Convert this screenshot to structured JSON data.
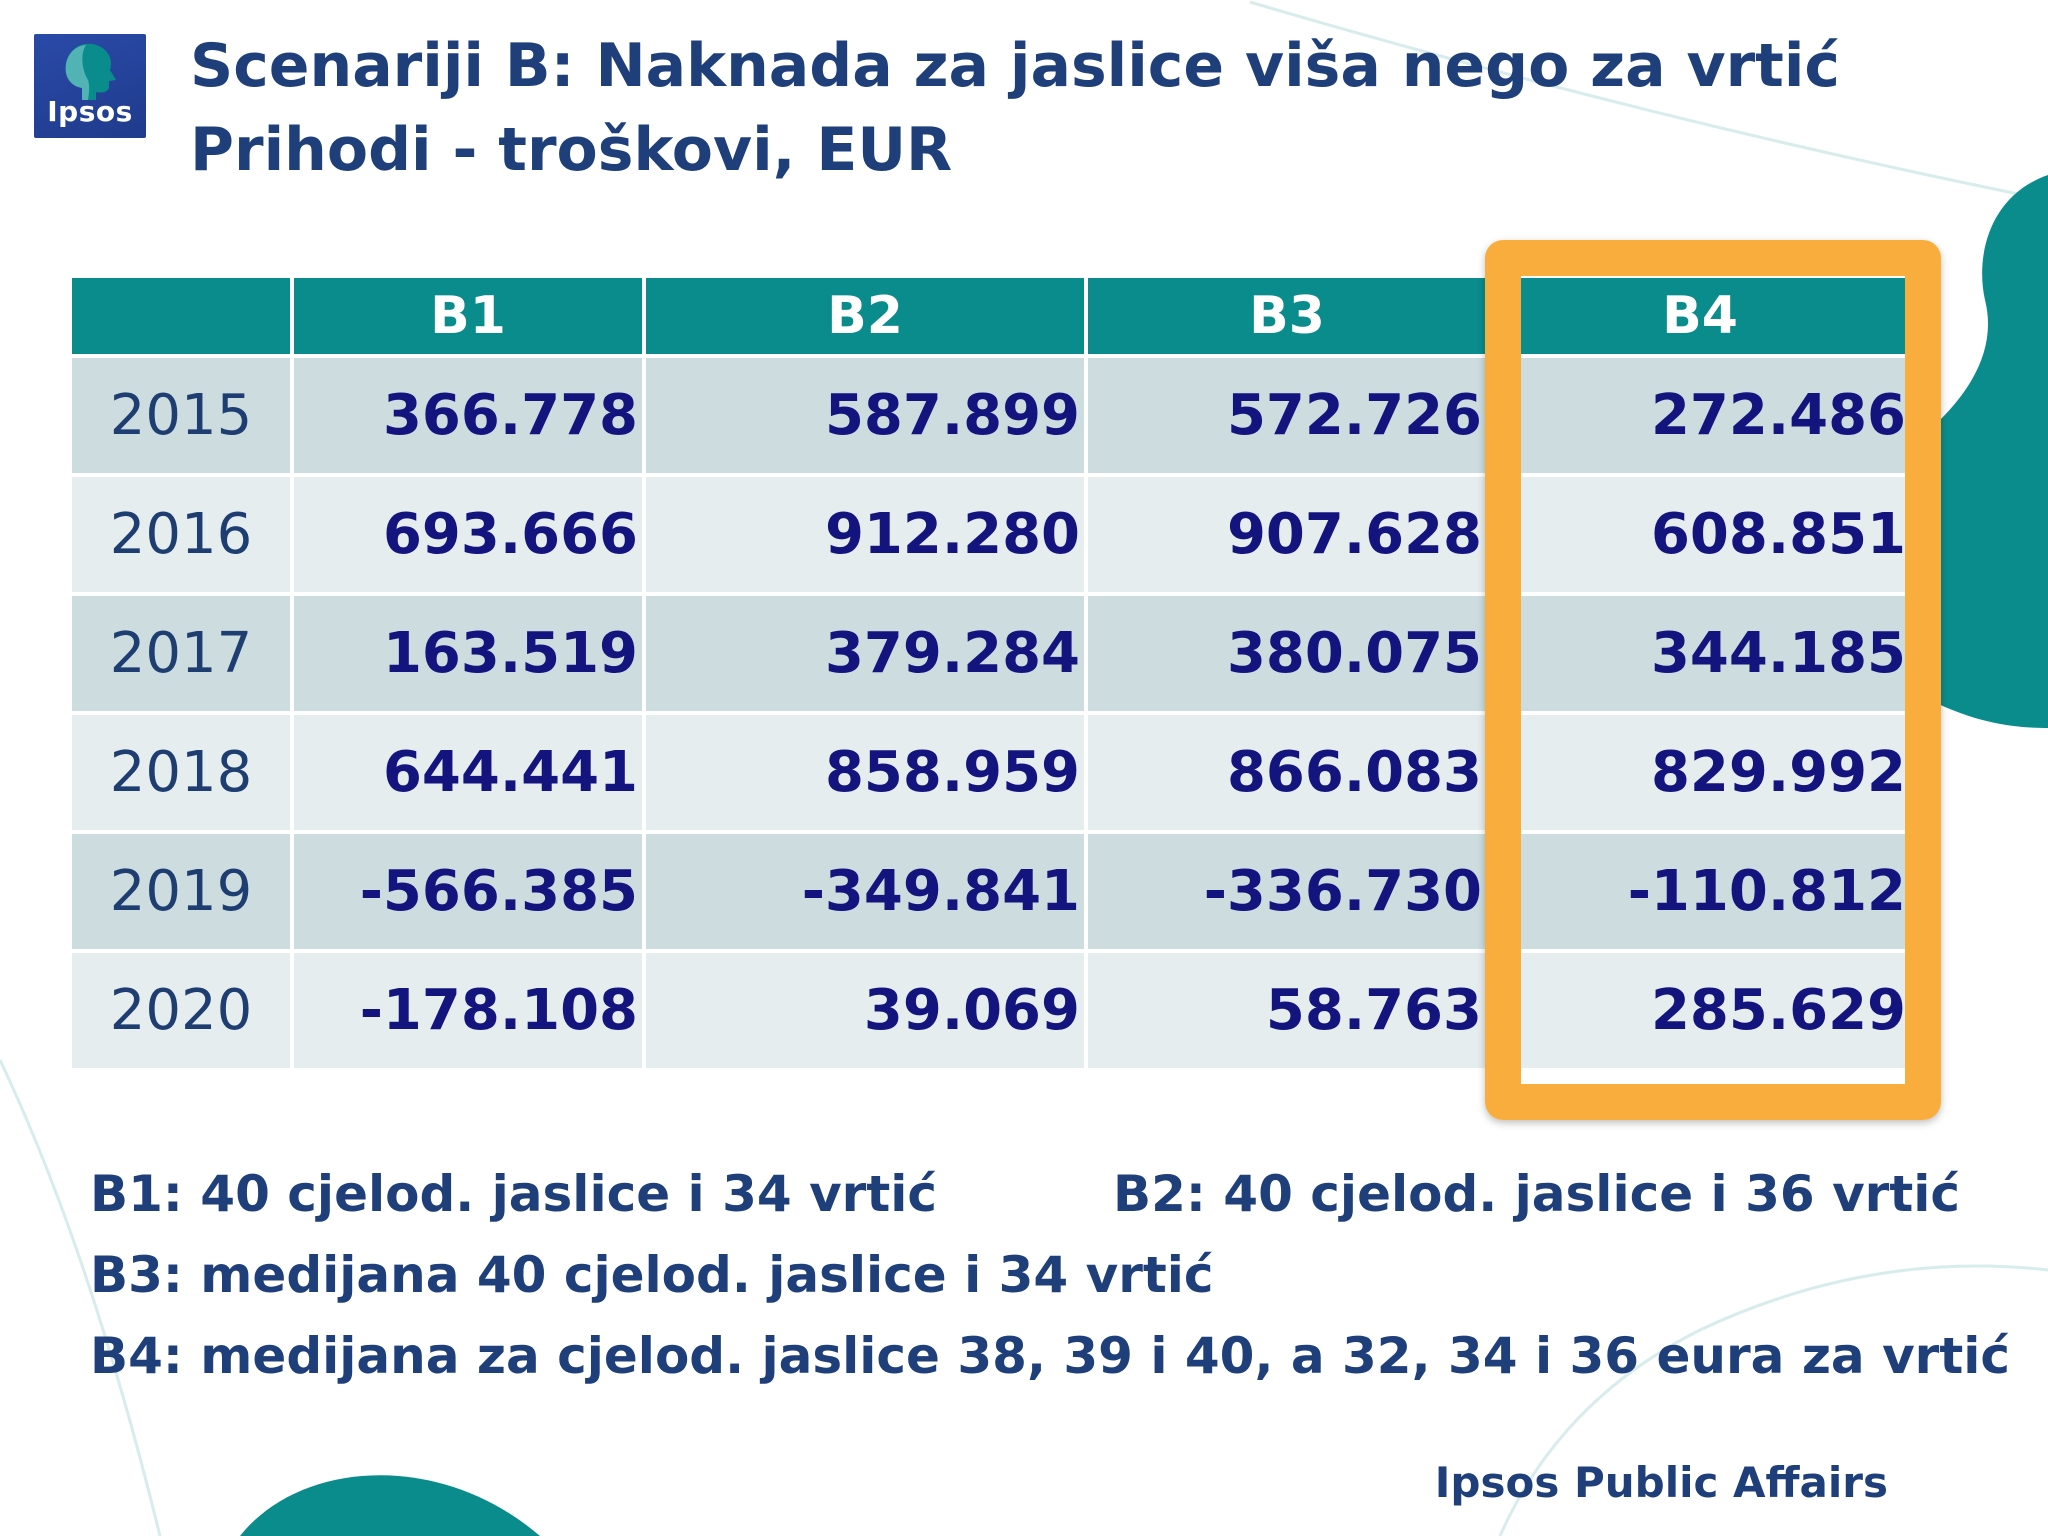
{
  "logo": {
    "text": "Ipsos"
  },
  "title": {
    "line1": "Scenariji B: Naknada za jaslice viša nego za vrtić",
    "line2": "Prihodi - troškovi, EUR"
  },
  "table": {
    "headers": [
      "",
      "B1",
      "B2",
      "B3",
      "B4"
    ],
    "rows": [
      {
        "year": "2015",
        "b1": "366.778",
        "b2": "587.899",
        "b3": "572.726",
        "b4": "272.486"
      },
      {
        "year": "2016",
        "b1": "693.666",
        "b2": "912.280",
        "b3": "907.628",
        "b4": "608.851"
      },
      {
        "year": "2017",
        "b1": "163.519",
        "b2": "379.284",
        "b3": "380.075",
        "b4": "344.185"
      },
      {
        "year": "2018",
        "b1": "644.441",
        "b2": "858.959",
        "b3": "866.083",
        "b4": "829.992"
      },
      {
        "year": "2019",
        "b1": "-566.385",
        "b2": "-349.841",
        "b3": "-336.730",
        "b4": "-110.812"
      },
      {
        "year": "2020",
        "b1": "-178.108",
        "b2": "39.069",
        "b3": "58.763",
        "b4": "285.629"
      }
    ],
    "highlighted_column": "B4"
  },
  "notes": {
    "b1": "B1: 40 cjelod. jaslice i 34 vrtić",
    "b2": "B2: 40 cjelod. jaslice i 36 vrtić",
    "b3": "B3: medijana 40 cjelod. jaslice i 34 vrtić",
    "b4": "B4: medijana za cjelod. jaslice 38, 39 i 40, a 32, 34 i 36 eura za vrtić"
  },
  "footer": "Ipsos Public Affairs",
  "colors": {
    "title": "#1f3f7a",
    "header_bg": "#0a8c8c",
    "row_dark": "#cddcdf",
    "row_light": "#e6edef",
    "values": "#14147e",
    "highlight": "#f9ad3c",
    "decor": "#0a8c8c"
  }
}
